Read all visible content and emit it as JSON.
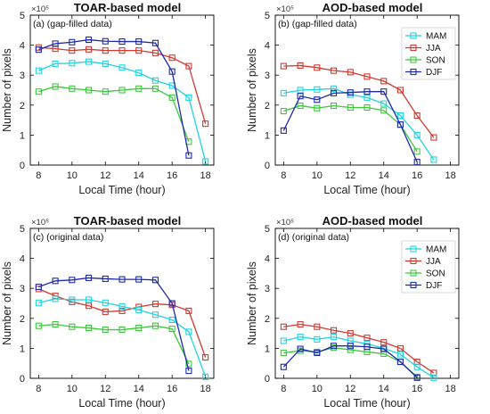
{
  "colors": {
    "MAM": "#22d3e0",
    "JJA": "#d03a30",
    "SON": "#3ec83e",
    "DJF": "#1f2aa8"
  },
  "chart_data": [
    {
      "type": "line",
      "title": "TOAR-based model",
      "panel_label": "(a) (gap-filled data)",
      "xlabel": "Local Time (hour)",
      "ylabel": "Number of pixels",
      "exponent_label": "×10⁵",
      "xlim": [
        7.5,
        18.5
      ],
      "ylim": [
        0,
        5
      ],
      "xticks": [
        8,
        10,
        12,
        14,
        16,
        18
      ],
      "yticks": [
        0,
        1,
        2,
        3,
        4,
        5
      ],
      "legend": false,
      "series": [
        {
          "name": "JJA",
          "x": [
            8,
            9,
            10,
            11,
            12,
            13,
            14,
            15,
            16,
            17,
            18
          ],
          "values": [
            3.92,
            3.88,
            3.82,
            3.86,
            3.82,
            3.82,
            3.82,
            3.74,
            3.58,
            3.3,
            1.38
          ]
        },
        {
          "name": "MAM",
          "x": [
            8,
            9,
            10,
            11,
            12,
            13,
            14,
            15,
            16,
            17,
            18
          ],
          "values": [
            3.15,
            3.38,
            3.4,
            3.45,
            3.38,
            3.25,
            3.08,
            2.82,
            2.65,
            2.25,
            0.12
          ]
        },
        {
          "name": "SON",
          "x": [
            8,
            9,
            10,
            11,
            12,
            13,
            14,
            15,
            16,
            17
          ],
          "values": [
            2.45,
            2.62,
            2.55,
            2.5,
            2.45,
            2.5,
            2.55,
            2.55,
            2.25,
            0.78
          ]
        },
        {
          "name": "DJF",
          "x": [
            8,
            9,
            10,
            11,
            12,
            13,
            14,
            15,
            16,
            17
          ],
          "values": [
            3.85,
            4.05,
            4.1,
            4.18,
            4.13,
            4.12,
            4.12,
            4.07,
            3.12,
            0.32
          ]
        }
      ]
    },
    {
      "type": "line",
      "title": "AOD-based model",
      "panel_label": "(b) (gap-filled data)",
      "xlabel": "Local Time (hour)",
      "ylabel": "Number of pixels",
      "exponent_label": "×10⁵",
      "xlim": [
        7.5,
        18.5
      ],
      "ylim": [
        0,
        5
      ],
      "xticks": [
        8,
        10,
        12,
        14,
        16,
        18
      ],
      "yticks": [
        0,
        1,
        2,
        3,
        4,
        5
      ],
      "legend": true,
      "legend_position": "top-right",
      "series": [
        {
          "name": "JJA",
          "x": [
            8,
            9,
            10,
            11,
            12,
            13,
            14,
            15,
            16,
            17
          ],
          "values": [
            3.3,
            3.32,
            3.25,
            3.15,
            3.1,
            2.95,
            2.8,
            2.5,
            1.65,
            0.92
          ]
        },
        {
          "name": "MAM",
          "x": [
            8,
            9,
            10,
            11,
            12,
            13,
            14,
            15,
            16,
            17
          ],
          "values": [
            2.4,
            2.5,
            2.52,
            2.55,
            2.35,
            2.25,
            2.05,
            1.65,
            1.0,
            0.18
          ]
        },
        {
          "name": "SON",
          "x": [
            8,
            9,
            10,
            11,
            12,
            13,
            14,
            15,
            16
          ],
          "values": [
            1.8,
            1.98,
            1.9,
            1.98,
            1.92,
            1.92,
            1.82,
            1.35,
            0.45
          ]
        },
        {
          "name": "DJF",
          "x": [
            8,
            9,
            10,
            11,
            12,
            13,
            14,
            15,
            16
          ],
          "values": [
            1.15,
            2.3,
            2.18,
            2.4,
            2.42,
            2.45,
            2.45,
            1.35,
            0.1
          ]
        }
      ]
    },
    {
      "type": "line",
      "title": "TOAR-based model",
      "panel_label": "(c) (original data)",
      "xlabel": "Local Time (hour)",
      "ylabel": "Number of pixels",
      "exponent_label": "×10⁵",
      "xlim": [
        7.5,
        18.5
      ],
      "ylim": [
        0,
        5
      ],
      "xticks": [
        8,
        10,
        12,
        14,
        16,
        18
      ],
      "yticks": [
        0,
        1,
        2,
        3,
        4,
        5
      ],
      "legend": false,
      "series": [
        {
          "name": "JJA",
          "x": [
            8,
            9,
            10,
            11,
            12,
            13,
            14,
            15,
            16,
            17,
            18
          ],
          "values": [
            2.98,
            2.75,
            2.55,
            2.42,
            2.22,
            2.25,
            2.38,
            2.48,
            2.45,
            2.25,
            0.7
          ]
        },
        {
          "name": "MAM",
          "x": [
            8,
            9,
            10,
            11,
            12,
            13,
            14,
            15,
            16,
            17,
            18
          ],
          "values": [
            2.52,
            2.65,
            2.62,
            2.62,
            2.52,
            2.4,
            2.28,
            2.12,
            1.95,
            1.55,
            0.05
          ]
        },
        {
          "name": "SON",
          "x": [
            8,
            9,
            10,
            11,
            12,
            13,
            14,
            15,
            16,
            17
          ],
          "values": [
            1.75,
            1.8,
            1.72,
            1.68,
            1.62,
            1.62,
            1.68,
            1.75,
            1.65,
            0.48
          ]
        },
        {
          "name": "DJF",
          "x": [
            8,
            9,
            10,
            11,
            12,
            13,
            14,
            15,
            16,
            17
          ],
          "values": [
            3.05,
            3.25,
            3.28,
            3.35,
            3.32,
            3.3,
            3.3,
            3.28,
            2.5,
            0.25
          ]
        }
      ]
    },
    {
      "type": "line",
      "title": "AOD-based model",
      "panel_label": "(d) (original data)",
      "xlabel": "Local Time (hour)",
      "ylabel": "Number of pixels",
      "exponent_label": "×10⁵",
      "xlim": [
        7.5,
        18.5
      ],
      "ylim": [
        0,
        5
      ],
      "xticks": [
        8,
        10,
        12,
        14,
        16,
        18
      ],
      "yticks": [
        0,
        1,
        2,
        3,
        4,
        5
      ],
      "legend": true,
      "legend_position": "top-right",
      "series": [
        {
          "name": "JJA",
          "x": [
            8,
            9,
            10,
            11,
            12,
            13,
            14,
            15,
            16,
            17
          ],
          "values": [
            1.72,
            1.8,
            1.72,
            1.6,
            1.5,
            1.35,
            1.2,
            1.0,
            0.55,
            0.18
          ]
        },
        {
          "name": "MAM",
          "x": [
            8,
            9,
            10,
            11,
            12,
            13,
            14,
            15,
            16,
            17
          ],
          "values": [
            1.25,
            1.38,
            1.3,
            1.38,
            1.25,
            1.15,
            1.0,
            0.8,
            0.38,
            0.02
          ]
        },
        {
          "name": "SON",
          "x": [
            8,
            9,
            10,
            11,
            12,
            13,
            14,
            15,
            16
          ],
          "values": [
            0.85,
            0.92,
            0.88,
            1.02,
            0.95,
            0.88,
            0.82,
            0.55,
            0.05
          ]
        },
        {
          "name": "DJF",
          "x": [
            8,
            9,
            10,
            11,
            12,
            13,
            14,
            15,
            16
          ],
          "values": [
            0.38,
            0.98,
            0.85,
            1.08,
            1.08,
            1.05,
            0.98,
            0.55,
            0.02
          ]
        }
      ]
    }
  ],
  "legend_order": [
    "MAM",
    "JJA",
    "SON",
    "DJF"
  ]
}
